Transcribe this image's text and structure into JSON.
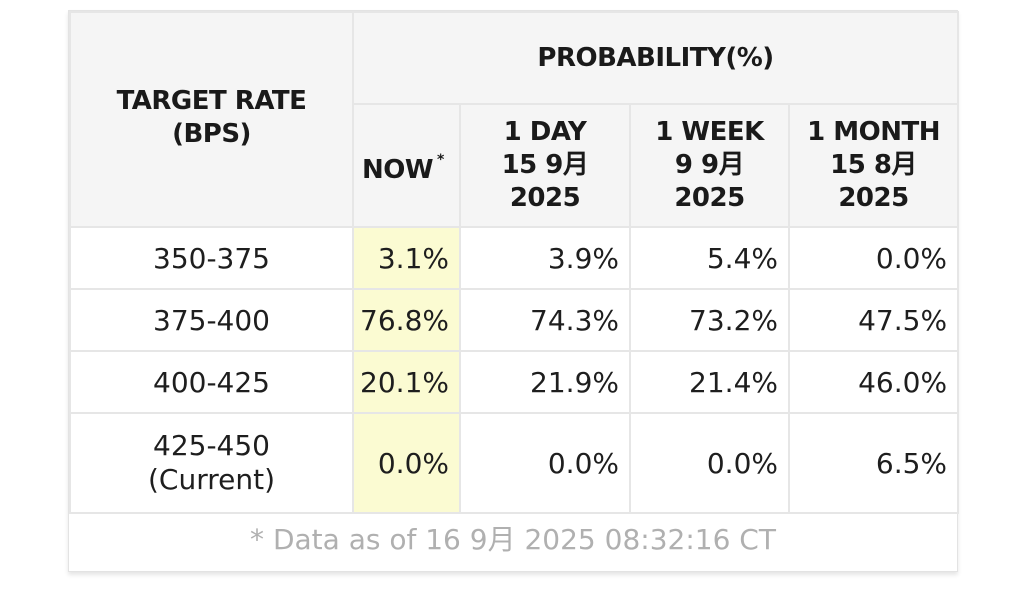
{
  "table": {
    "target_header_line1": "TARGET RATE",
    "target_header_line2": "(BPS)",
    "probability_header": "PROBABILITY(%)",
    "columns": [
      {
        "line1": "NOW",
        "marker": "*"
      },
      {
        "line1": "1 DAY",
        "line2": "15 9月",
        "line3": "2025"
      },
      {
        "line1": "1 WEEK",
        "line2": "9 9月",
        "line3": "2025"
      },
      {
        "line1": "1 MONTH",
        "line2": "15 8月",
        "line3": "2025"
      }
    ],
    "rows": [
      {
        "rate": "350-375",
        "rate_note": "",
        "values": [
          "3.1%",
          "3.9%",
          "5.4%",
          "0.0%"
        ]
      },
      {
        "rate": "375-400",
        "rate_note": "",
        "values": [
          "76.8%",
          "74.3%",
          "73.2%",
          "47.5%"
        ]
      },
      {
        "rate": "400-425",
        "rate_note": "",
        "values": [
          "20.1%",
          "21.9%",
          "21.4%",
          "46.0%"
        ]
      },
      {
        "rate": "425-450",
        "rate_note": "(Current)",
        "values": [
          "0.0%",
          "0.0%",
          "0.0%",
          "6.5%"
        ]
      }
    ],
    "highlight_color": "#fbfbd2"
  },
  "footer": {
    "note": "* Data as of 16 9月 2025 08:32:16 CT"
  }
}
